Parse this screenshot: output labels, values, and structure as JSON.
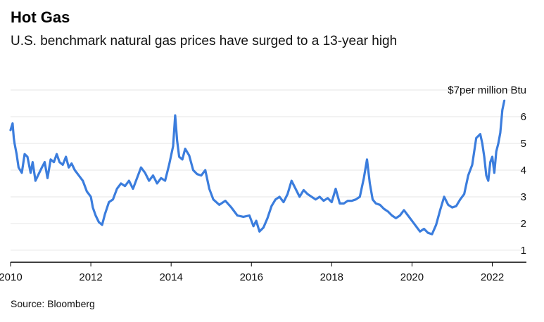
{
  "header": {
    "title": "Hot Gas",
    "subtitle": "U.S. benchmark natural gas prices have surged to a 13-year high"
  },
  "footer": {
    "source": "Source: Bloomberg"
  },
  "colors": {
    "line": "#3b7ddd",
    "grid": "#e6e6e6",
    "axis": "#000000"
  },
  "chart_data": {
    "type": "line",
    "title": "Hot Gas",
    "subtitle": "U.S. benchmark natural gas prices have surged to a 13-year high",
    "ylabel": "$7per million Btu",
    "xlim": [
      2010,
      2022.85
    ],
    "ylim": [
      0.55,
      7
    ],
    "x_ticks": [
      2010,
      2012,
      2014,
      2016,
      2018,
      2020,
      2022
    ],
    "x_tick_labels": [
      "2010",
      "2012",
      "2014",
      "2016",
      "2018",
      "2020",
      "2022"
    ],
    "y_ticks": [
      1,
      2,
      3,
      4,
      5,
      6,
      7
    ],
    "y_tick_labels": [
      "1",
      "2",
      "3",
      "4",
      "5",
      "6",
      "$7per million Btu"
    ],
    "grid": true,
    "series": [
      {
        "x": [
          2010.0,
          2010.05,
          2010.08,
          2010.1,
          2010.15,
          2010.2,
          2010.28,
          2010.35,
          2010.42,
          2010.5,
          2010.55,
          2010.62,
          2010.7,
          2010.78,
          2010.85,
          2010.92,
          2011.0,
          2011.08,
          2011.15,
          2011.22,
          2011.3,
          2011.38,
          2011.45,
          2011.52,
          2011.6,
          2011.7,
          2011.8,
          2011.9,
          2012.0,
          2012.05,
          2012.12,
          2012.2,
          2012.28,
          2012.35,
          2012.45,
          2012.55,
          2012.65,
          2012.75,
          2012.85,
          2012.95,
          2013.05,
          2013.15,
          2013.25,
          2013.35,
          2013.45,
          2013.55,
          2013.65,
          2013.75,
          2013.85,
          2013.95,
          2014.05,
          2014.1,
          2014.15,
          2014.2,
          2014.28,
          2014.35,
          2014.45,
          2014.55,
          2014.65,
          2014.75,
          2014.85,
          2014.95,
          2015.05,
          2015.2,
          2015.35,
          2015.5,
          2015.65,
          2015.8,
          2015.95,
          2016.05,
          2016.12,
          2016.2,
          2016.3,
          2016.4,
          2016.5,
          2016.6,
          2016.7,
          2016.8,
          2016.9,
          2017.0,
          2017.1,
          2017.2,
          2017.3,
          2017.4,
          2017.5,
          2017.6,
          2017.7,
          2017.8,
          2017.9,
          2018.0,
          2018.1,
          2018.2,
          2018.3,
          2018.4,
          2018.5,
          2018.6,
          2018.7,
          2018.8,
          2018.88,
          2018.95,
          2019.02,
          2019.1,
          2019.2,
          2019.3,
          2019.4,
          2019.5,
          2019.6,
          2019.7,
          2019.8,
          2019.9,
          2020.0,
          2020.1,
          2020.2,
          2020.3,
          2020.4,
          2020.5,
          2020.6,
          2020.7,
          2020.8,
          2020.9,
          2021.0,
          2021.1,
          2021.2,
          2021.3,
          2021.4,
          2021.5,
          2021.6,
          2021.7,
          2021.75,
          2021.8,
          2021.85,
          2021.9,
          2021.95,
          2022.0,
          2022.05,
          2022.1,
          2022.15,
          2022.2,
          2022.25,
          2022.3
        ],
        "values": [
          5.5,
          5.75,
          5.2,
          5.0,
          4.6,
          4.1,
          3.9,
          4.6,
          4.5,
          3.9,
          4.3,
          3.6,
          3.85,
          4.1,
          4.3,
          3.7,
          4.4,
          4.3,
          4.6,
          4.3,
          4.2,
          4.5,
          4.1,
          4.25,
          4.0,
          3.8,
          3.6,
          3.2,
          3.0,
          2.6,
          2.3,
          2.05,
          1.95,
          2.35,
          2.8,
          2.9,
          3.3,
          3.5,
          3.4,
          3.6,
          3.3,
          3.7,
          4.1,
          3.9,
          3.6,
          3.8,
          3.5,
          3.7,
          3.6,
          4.2,
          4.9,
          6.05,
          5.1,
          4.5,
          4.4,
          4.8,
          4.55,
          4.0,
          3.85,
          3.8,
          4.0,
          3.3,
          2.9,
          2.7,
          2.85,
          2.6,
          2.3,
          2.25,
          2.3,
          1.9,
          2.1,
          1.7,
          1.85,
          2.2,
          2.65,
          2.9,
          3.0,
          2.8,
          3.1,
          3.6,
          3.3,
          3.0,
          3.25,
          3.1,
          3.0,
          2.9,
          3.0,
          2.85,
          2.95,
          2.8,
          3.3,
          2.75,
          2.75,
          2.85,
          2.85,
          2.9,
          3.0,
          3.7,
          4.4,
          3.5,
          2.9,
          2.75,
          2.7,
          2.55,
          2.45,
          2.3,
          2.2,
          2.3,
          2.5,
          2.3,
          2.1,
          1.9,
          1.7,
          1.8,
          1.65,
          1.6,
          1.95,
          2.5,
          3.0,
          2.7,
          2.6,
          2.65,
          2.9,
          3.1,
          3.8,
          4.2,
          5.2,
          5.35,
          5.0,
          4.5,
          3.8,
          3.6,
          4.3,
          4.5,
          3.9,
          4.7,
          5.0,
          5.4,
          6.25,
          6.6
        ]
      }
    ]
  }
}
